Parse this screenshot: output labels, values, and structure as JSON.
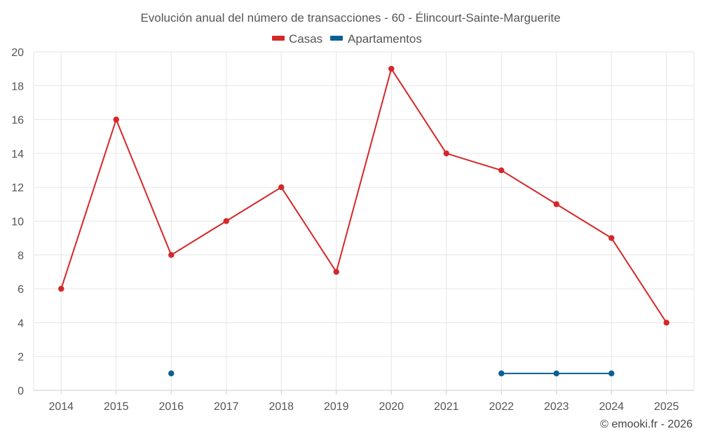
{
  "chart_data": {
    "type": "line",
    "title": "Evolución anual del número de transacciones - 60 - Élincourt-Sainte-Marguerite",
    "categories": [
      "2014",
      "2015",
      "2016",
      "2017",
      "2018",
      "2019",
      "2020",
      "2021",
      "2022",
      "2023",
      "2024",
      "2025"
    ],
    "series": [
      {
        "name": "Casas",
        "color": "#d62728",
        "values": [
          6,
          16,
          8,
          10,
          12,
          7,
          19,
          14,
          13,
          11,
          9,
          4
        ]
      },
      {
        "name": "Apartamentos",
        "color": "#0b5f96",
        "values": [
          null,
          null,
          1,
          null,
          null,
          null,
          null,
          null,
          1,
          1,
          1,
          null
        ]
      }
    ],
    "ylim": [
      0,
      20
    ],
    "yticks": [
      "0",
      "2",
      "4",
      "6",
      "8",
      "10",
      "12",
      "14",
      "16",
      "18",
      "20"
    ],
    "grid": true,
    "legend": "top-center",
    "xlabel": "",
    "ylabel": ""
  },
  "credit": "© emooki.fr - 2026"
}
